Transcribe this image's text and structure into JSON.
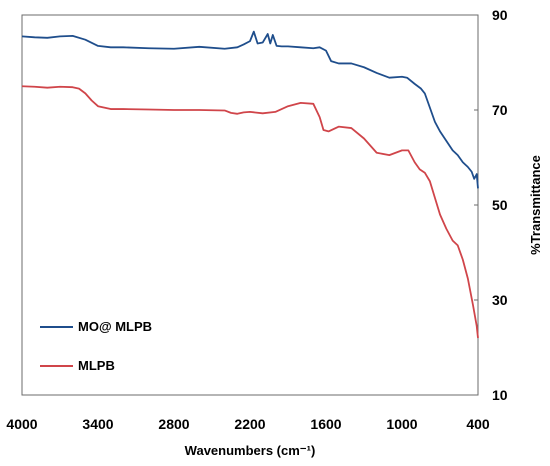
{
  "chart_data": {
    "type": "line",
    "title": "",
    "xlabel": "Wavenumbers (cm⁻¹)",
    "ylabel": "%Transmittance",
    "xlim": [
      4000,
      400
    ],
    "ylim": [
      10,
      90
    ],
    "x_ticks": [
      4000,
      3400,
      2800,
      2200,
      1600,
      1000,
      400
    ],
    "y_ticks": [
      10,
      30,
      50,
      70,
      90
    ],
    "y_axis_side": "right",
    "grid": false,
    "legend_position": "bottom-left",
    "series": [
      {
        "name": "MO@ MLPB",
        "color": "#1f4e8c",
        "x": [
          4000,
          3900,
          3800,
          3700,
          3600,
          3500,
          3400,
          3300,
          3200,
          3000,
          2800,
          2600,
          2400,
          2300,
          2250,
          2200,
          2170,
          2140,
          2100,
          2060,
          2040,
          2020,
          1990,
          1950,
          1900,
          1800,
          1700,
          1650,
          1600,
          1560,
          1500,
          1400,
          1300,
          1200,
          1100,
          1000,
          960,
          900,
          850,
          820,
          780,
          740,
          700,
          650,
          600,
          560,
          520,
          480,
          450,
          430,
          410,
          400
        ],
        "y": [
          85.5,
          85.3,
          85.2,
          85.5,
          85.6,
          84.8,
          83.5,
          83.2,
          83.2,
          83.0,
          82.9,
          83.3,
          82.9,
          83.2,
          83.8,
          84.5,
          86.5,
          84.0,
          84.2,
          86.0,
          84.0,
          85.8,
          83.5,
          83.4,
          83.4,
          83.2,
          83.0,
          83.2,
          82.5,
          80.3,
          79.8,
          79.8,
          79.0,
          77.8,
          76.8,
          77.0,
          76.8,
          75.5,
          74.5,
          73.5,
          70.5,
          67.5,
          65.5,
          63.5,
          61.5,
          60.5,
          59.0,
          58.0,
          57.0,
          55.5,
          56.5,
          53.5
        ]
      },
      {
        "name": "MLPB",
        "color": "#d0454a",
        "x": [
          4000,
          3900,
          3800,
          3700,
          3600,
          3550,
          3500,
          3450,
          3400,
          3300,
          3200,
          3000,
          2800,
          2600,
          2400,
          2350,
          2300,
          2250,
          2200,
          2100,
          2000,
          1950,
          1900,
          1800,
          1700,
          1650,
          1620,
          1580,
          1500,
          1400,
          1300,
          1200,
          1100,
          1000,
          950,
          900,
          860,
          820,
          780,
          740,
          700,
          650,
          600,
          560,
          520,
          480,
          440,
          410,
          400
        ],
        "y": [
          75.0,
          74.9,
          74.7,
          74.9,
          74.8,
          74.5,
          73.5,
          72.0,
          70.8,
          70.2,
          70.2,
          70.1,
          70.0,
          70.0,
          69.9,
          69.4,
          69.2,
          69.5,
          69.6,
          69.3,
          69.6,
          70.2,
          70.8,
          71.5,
          71.3,
          68.5,
          65.8,
          65.5,
          66.5,
          66.2,
          64.0,
          61.0,
          60.5,
          61.5,
          61.5,
          59.0,
          57.5,
          56.8,
          55.0,
          51.5,
          48.0,
          45.0,
          42.5,
          41.5,
          38.5,
          34.5,
          29.0,
          24.5,
          22.0
        ]
      }
    ]
  }
}
